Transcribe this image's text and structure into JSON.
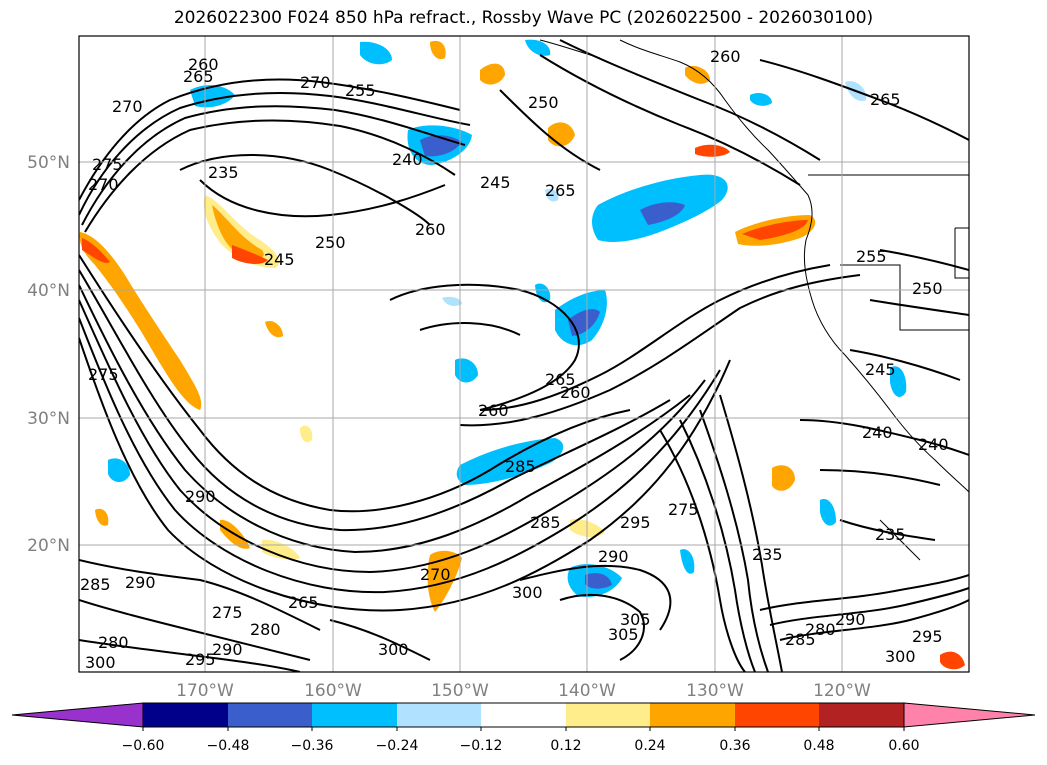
{
  "title": "2026022300 F024 850 hPa refract., Rossby Wave PC (2026022500 - 2026030100)",
  "lat_labels": [
    "50°N",
    "40°N",
    "30°N",
    "20°N"
  ],
  "lon_labels": [
    "170°W",
    "160°W",
    "150°W",
    "140°W",
    "130°W",
    "120°W"
  ],
  "contour_labels": [
    "260",
    "265",
    "270",
    "270",
    "255",
    "250",
    "260",
    "265",
    "270",
    "275",
    "235",
    "240",
    "245",
    "265",
    "250",
    "245",
    "260",
    "255",
    "250",
    "245",
    "265",
    "260",
    "260",
    "285",
    "275",
    "285",
    "290",
    "295",
    "300",
    "305",
    "290",
    "270",
    "280",
    "275",
    "265",
    "285",
    "290",
    "280",
    "300",
    "295",
    "290",
    "300",
    "305",
    "275",
    "235",
    "240",
    "240",
    "235",
    "285",
    "280",
    "290",
    "295",
    "300"
  ],
  "colorbar": {
    "ticks": [
      "−0.60",
      "−0.48",
      "−0.36",
      "−0.24",
      "−0.12",
      "0.12",
      "0.24",
      "0.36",
      "0.48",
      "0.60"
    ],
    "colors": [
      "#9932cc",
      "#00008b",
      "#3a5fcd",
      "#00bfff",
      "#b0e2ff",
      "#ffffff",
      "#ffec8b",
      "#ffa500",
      "#ff4500",
      "#b22222",
      "#ff82ab"
    ]
  },
  "colors": {
    "contour": "#000000",
    "coast": "#000000",
    "grid": "#a9a9a9",
    "axis_label": "#808080"
  }
}
